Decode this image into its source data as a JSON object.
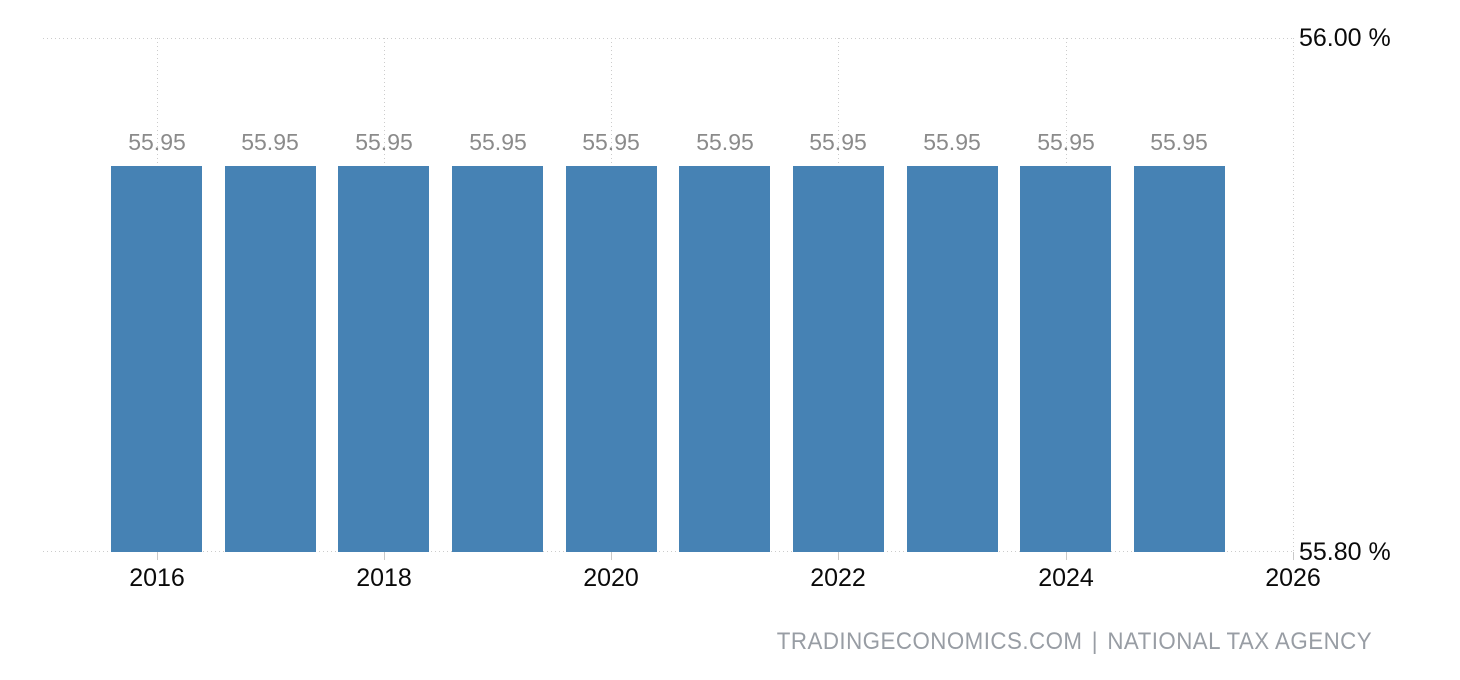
{
  "chart_data": {
    "type": "bar",
    "title": "",
    "xlabel": "",
    "ylabel": "",
    "unit": "%",
    "categories": [
      2016,
      2017,
      2018,
      2019,
      2020,
      2021,
      2022,
      2023,
      2024,
      2025
    ],
    "values": [
      55.95,
      55.95,
      55.95,
      55.95,
      55.95,
      55.95,
      55.95,
      55.95,
      55.95,
      55.95
    ],
    "value_labels": [
      "55.95",
      "55.95",
      "55.95",
      "55.95",
      "55.95",
      "55.95",
      "55.95",
      "55.95",
      "55.95",
      "55.95"
    ],
    "ylim": [
      55.8,
      56.0
    ],
    "x_range": [
      2015,
      2026
    ],
    "x_gridline_years": [
      2016,
      2018,
      2020,
      2022,
      2024,
      2026
    ],
    "x_ticks": [
      {
        "year": 2016,
        "label": "2016"
      },
      {
        "year": 2018,
        "label": "2018"
      },
      {
        "year": 2020,
        "label": "2020"
      },
      {
        "year": 2022,
        "label": "2022"
      },
      {
        "year": 2024,
        "label": "2024"
      },
      {
        "year": 2026,
        "label": "2026"
      }
    ],
    "y_ticks": [
      {
        "value": 56.0,
        "label": "56.00 %"
      },
      {
        "value": 55.8,
        "label": "55.80 %"
      }
    ],
    "grid": "dotted",
    "legend_position": "none",
    "bar_color": "#4682B4",
    "grid_color": "#cccccc",
    "value_label_color": "#8b8b8b",
    "axis_text_color": "#0a0a0a",
    "attribution_color": "#989da4"
  },
  "attribution": {
    "source": "TRADINGECONOMICS.COM",
    "separator": "|",
    "provider": "NATIONAL TAX AGENCY"
  }
}
